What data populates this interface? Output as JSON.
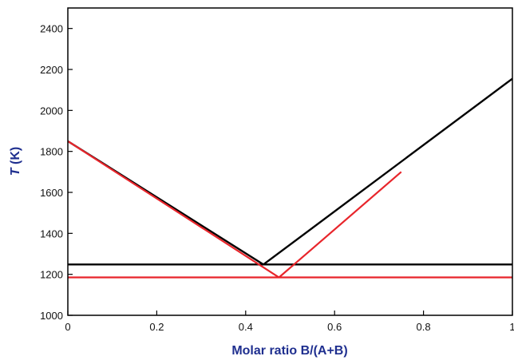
{
  "chart_data": {
    "type": "line",
    "title": "",
    "xlabel": "Molar ratio B/(A+B)",
    "ylabel_var": "T",
    "ylabel_unit": " (K)",
    "xlim": [
      0,
      1
    ],
    "ylim": [
      1000,
      2500
    ],
    "x_ticks": [
      0,
      0.2,
      0.4,
      0.6,
      0.8,
      1
    ],
    "x_tick_labels": [
      "0",
      "0.2",
      "0.4",
      "0.6",
      "0.8",
      "1"
    ],
    "y_ticks": [
      1000,
      1200,
      1400,
      1600,
      1800,
      2000,
      2200,
      2400
    ],
    "y_tick_labels": [
      "1000",
      "1200",
      "1400",
      "1600",
      "1800",
      "2000",
      "2200",
      "2400"
    ],
    "grid": false,
    "legend": "none",
    "colors": {
      "axis_title": "#1f2f8f",
      "black_series": "#000000",
      "red_series": "#e8252b"
    },
    "series": [
      {
        "color": "#000000",
        "x": [
          0,
          0.44
        ],
        "y": [
          1850,
          1248
        ]
      },
      {
        "color": "#000000",
        "x": [
          0.44,
          1.0
        ],
        "y": [
          1248,
          2155
        ]
      },
      {
        "color": "#000000",
        "x": [
          0,
          1.0
        ],
        "y": [
          1248,
          1248
        ]
      },
      {
        "color": "#e8252b",
        "x": [
          0,
          0.475
        ],
        "y": [
          1850,
          1185
        ]
      },
      {
        "color": "#e8252b",
        "x": [
          0.475,
          0.75
        ],
        "y": [
          1185,
          1700
        ]
      },
      {
        "color": "#e8252b",
        "x": [
          0,
          1.0
        ],
        "y": [
          1185,
          1185
        ]
      }
    ]
  }
}
